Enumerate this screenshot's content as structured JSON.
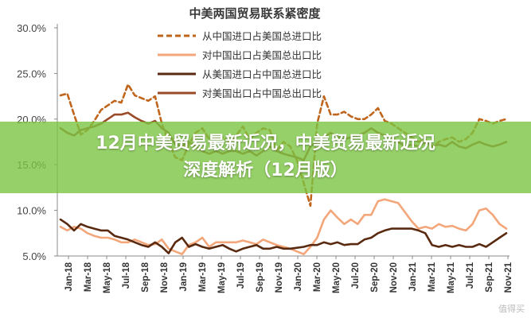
{
  "chart_data": {
    "type": "line",
    "title": "中美两国贸易联系紧密度",
    "xlabel": "",
    "ylabel": "",
    "y_tick_labels": [
      "30.0%",
      "25.0%",
      "20.0%",
      "15.0%",
      "10.0%",
      "5.0%"
    ],
    "ylim": [
      5,
      30
    ],
    "x_tick_labels": [
      "Jan-18",
      "Mar-18",
      "May-18",
      "Jul-18",
      "Sep-18",
      "Nov-18",
      "Jan-19",
      "Mar-19",
      "May-19",
      "Jul-19",
      "Sep-19",
      "Nov-19",
      "Jan-20",
      "Mar-20",
      "May-20",
      "Jul-20",
      "Sep-20",
      "Nov-20",
      "Jan-21",
      "Mar-21",
      "May-21",
      "Jul-21",
      "Sep-21",
      "Nov-21"
    ],
    "grid": false,
    "legend_position": "top-right",
    "series": [
      {
        "name": "从中国进口占美国总进口比",
        "color": "#c0651c",
        "style": "dashed",
        "values": [
          22.6,
          22.8,
          20.5,
          18.3,
          18.8,
          19.8,
          21.0,
          21.5,
          22.0,
          21.8,
          23.8,
          22.6,
          22.3,
          22.0,
          22.5,
          19.5,
          17.5,
          15.8,
          15.5,
          17.2,
          18.5,
          19.0,
          17.8,
          18.2,
          18.0,
          17.5,
          18.2,
          19.2,
          17.8,
          18.5,
          19.0,
          18.8,
          16.5,
          17.5,
          17.0,
          15.5,
          13.0,
          10.5,
          19.5,
          22.5,
          20.5,
          20.5,
          20.8,
          20.3,
          20.0,
          20.0,
          20.5,
          21.2,
          19.8,
          19.5,
          19.0,
          18.5,
          18.0,
          17.5,
          17.8,
          17.0,
          17.5,
          17.8,
          18.0,
          17.5,
          17.8,
          18.5,
          20.0,
          19.8,
          19.5,
          19.8,
          20.0
        ]
      },
      {
        "name": "对中国出口占美国总出口比",
        "color": "#f3a679",
        "style": "solid",
        "values": [
          8.2,
          7.8,
          8.2,
          8.0,
          7.5,
          7.2,
          7.0,
          7.0,
          6.8,
          6.5,
          6.5,
          6.8,
          6.5,
          6.2,
          6.3,
          6.8,
          5.8,
          5.5,
          5.2,
          6.2,
          6.5,
          7.0,
          6.0,
          6.5,
          6.5,
          6.5,
          6.5,
          6.7,
          6.5,
          6.3,
          6.8,
          6.5,
          6.2,
          6.0,
          5.8,
          5.5,
          5.2,
          6.0,
          7.0,
          9.0,
          10.0,
          9.2,
          8.5,
          9.0,
          8.5,
          9.5,
          9.5,
          11.0,
          11.2,
          11.0,
          10.8,
          9.8,
          8.8,
          8.0,
          8.2,
          8.0,
          8.5,
          8.2,
          8.3,
          8.0,
          7.8,
          8.5,
          10.0,
          10.2,
          9.5,
          8.5,
          8.0
        ]
      },
      {
        "name": "从美国进口占中国总进口比",
        "color": "#5a2a10",
        "style": "solid",
        "values": [
          9.0,
          8.5,
          7.8,
          8.5,
          8.2,
          8.0,
          7.8,
          7.8,
          7.2,
          7.0,
          6.8,
          6.5,
          6.2,
          6.0,
          6.5,
          6.0,
          5.3,
          6.5,
          7.0,
          6.0,
          6.3,
          6.0,
          5.8,
          6.0,
          6.2,
          5.8,
          5.5,
          5.8,
          6.0,
          6.2,
          5.8,
          5.8,
          6.0,
          5.8,
          5.8,
          5.9,
          6.0,
          6.2,
          6.2,
          6.5,
          6.3,
          6.5,
          6.2,
          6.3,
          6.3,
          6.8,
          7.0,
          7.5,
          7.8,
          8.0,
          8.0,
          8.0,
          8.0,
          7.8,
          7.5,
          6.2,
          6.0,
          6.2,
          6.0,
          6.2,
          6.0,
          6.0,
          6.3,
          6.0,
          6.5,
          7.0,
          7.5
        ]
      },
      {
        "name": "对美国出口占中国总出口比",
        "color": "#9a4a28",
        "style": "solid",
        "values": [
          19.0,
          18.5,
          18.2,
          18.8,
          19.0,
          19.2,
          19.5,
          20.0,
          20.5,
          20.5,
          20.7,
          20.2,
          19.8,
          19.5,
          19.8,
          19.0,
          18.5,
          17.2,
          17.0,
          17.5,
          17.0,
          16.5,
          16.2,
          16.5,
          16.2,
          16.5,
          16.5,
          16.2,
          16.5,
          16.0,
          16.5,
          17.0,
          16.5,
          16.2,
          16.0,
          15.8,
          15.5,
          17.0,
          17.5,
          18.0,
          18.5,
          18.0,
          17.8,
          18.0,
          18.2,
          18.5,
          19.0,
          18.5,
          18.2,
          18.0,
          17.5,
          17.0,
          17.2,
          17.0,
          17.5,
          17.0,
          17.2,
          17.0,
          17.5,
          17.0,
          16.8,
          17.2,
          17.5,
          17.2,
          17.0,
          17.2,
          17.5
        ]
      }
    ]
  },
  "banner": {
    "line1": "12月中美贸易最新近况，中美贸易最新近况",
    "line2": "深度解析（12月版）"
  },
  "watermark": "值得买"
}
